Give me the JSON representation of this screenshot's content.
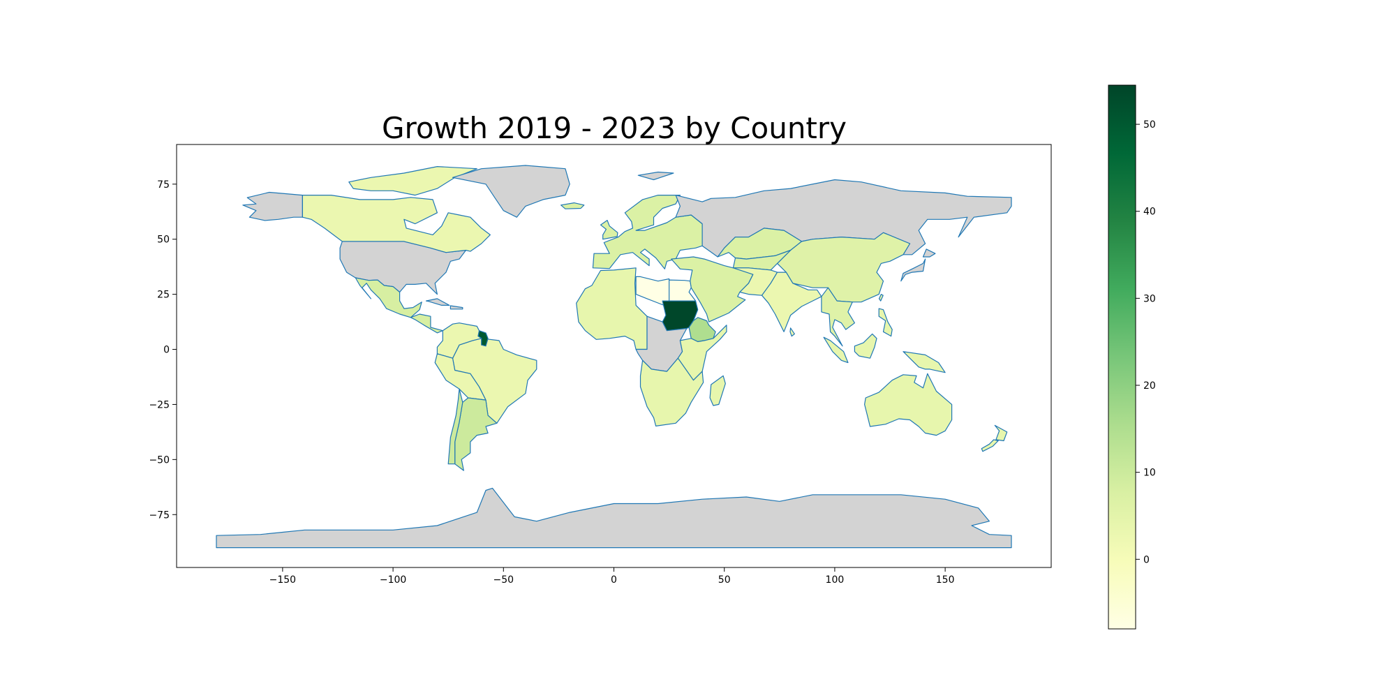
{
  "chart_data": {
    "type": "choropleth",
    "title": "Growth 2019 - 2023 by Country",
    "xlabel": "",
    "ylabel": "",
    "xlim": [
      -198,
      198
    ],
    "ylim": [
      -99,
      93
    ],
    "x_ticks": [
      -150,
      -100,
      -50,
      0,
      50,
      100,
      150
    ],
    "y_ticks": [
      75,
      50,
      25,
      0,
      -25,
      -50,
      -75
    ],
    "x_tick_labels": [
      "−150",
      "−100",
      "−50",
      "0",
      "50",
      "100",
      "150"
    ],
    "y_tick_labels": [
      "75",
      "50",
      "25",
      "0",
      "−25",
      "−50",
      "−75"
    ],
    "colormap": "Greens (light yellow to dark green)",
    "no_data_color": "#d3d3d3",
    "border_color": "#1f77b4",
    "colorbar": {
      "range": [
        -8,
        54.5
      ],
      "ticks": [
        0,
        10,
        20,
        30,
        40,
        50
      ],
      "tick_labels": [
        "0",
        "10",
        "20",
        "30",
        "40",
        "50"
      ],
      "colors": [
        "#ffffe5",
        "#f7fcb9",
        "#d9f0a3",
        "#addd8e",
        "#78c679",
        "#41ab5d",
        "#238443",
        "#006837",
        "#004529"
      ]
    },
    "regions": [
      {
        "name": "Sudan",
        "value": 54
      },
      {
        "name": "Guyana",
        "value": 50
      },
      {
        "name": "Ethiopia",
        "value": 15
      },
      {
        "name": "Argentina",
        "value": 10
      },
      {
        "name": "Mexico",
        "value": 8
      },
      {
        "name": "Kazakhstan",
        "value": 7
      },
      {
        "name": "China",
        "value": 6
      },
      {
        "name": "Australia",
        "value": 4
      },
      {
        "name": "Canada",
        "value": 3
      },
      {
        "name": "Brazil",
        "value": 3
      },
      {
        "name": "India",
        "value": 3
      },
      {
        "name": "Libya",
        "value": -8
      },
      {
        "name": "United States",
        "value": null
      },
      {
        "name": "Russia",
        "value": null
      },
      {
        "name": "Greenland",
        "value": null
      },
      {
        "name": "Antarctica",
        "value": null
      }
    ]
  }
}
